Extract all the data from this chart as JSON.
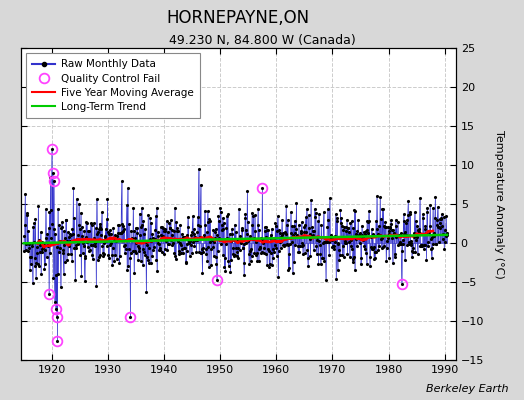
{
  "title": "HORNEPAYNE,ON",
  "subtitle": "49.230 N, 84.800 W (Canada)",
  "ylabel": "Temperature Anomaly (°C)",
  "xlim": [
    1914.5,
    1992
  ],
  "ylim": [
    -15,
    25
  ],
  "yticks": [
    -15,
    -10,
    -5,
    0,
    5,
    10,
    15,
    20,
    25
  ],
  "xticks": [
    1920,
    1930,
    1940,
    1950,
    1960,
    1970,
    1980,
    1990
  ],
  "outer_bg": "#d8d8d8",
  "plot_bg": "#ffffff",
  "line_color": "#3333cc",
  "dot_color": "#000000",
  "ma_color": "#ff0000",
  "trend_color": "#00cc00",
  "qc_color": "#ff44ff",
  "watermark": "Berkeley Earth",
  "seed": 42
}
